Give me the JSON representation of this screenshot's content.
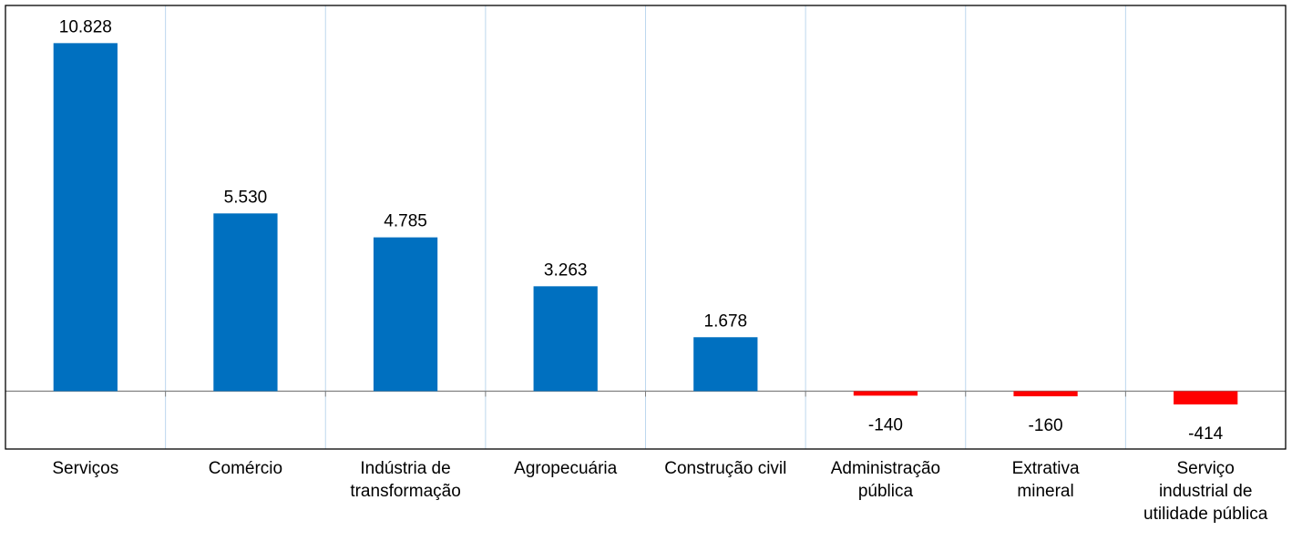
{
  "chart_data": {
    "type": "bar",
    "categories": [
      "Serviços",
      "Comércio",
      "Indústria de\ntransformação",
      "Agropecuária",
      "Construção civil",
      "Administração\npública",
      "Extrativa\nmineral",
      "Serviço\nindustrial de\nutilidade pública"
    ],
    "values": [
      10828,
      5530,
      4785,
      3263,
      1678,
      -140,
      -160,
      -414
    ],
    "value_labels": [
      "10.828",
      "5.530",
      "4.785",
      "3.263",
      "1.678",
      "-140",
      "-160",
      "-414"
    ],
    "color": "#0070c0",
    "negative_color": "#ff0000",
    "ylim": [
      -1800,
      12000
    ],
    "grid": true
  }
}
